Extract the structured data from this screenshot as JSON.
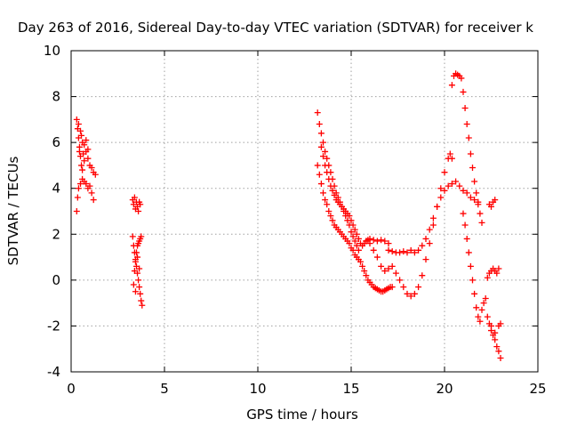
{
  "chart_data": {
    "type": "scatter",
    "title": "Day 263 of 2016, Sidereal Day-to-day VTEC variation (SDTVAR) for receiver k",
    "xlabel": "GPS time / hours",
    "ylabel": "SDTVAR / TECUs",
    "xlim": [
      0,
      25
    ],
    "ylim": [
      -4,
      10
    ],
    "xticks": [
      0,
      5,
      10,
      15,
      20,
      25
    ],
    "yticks": [
      -4,
      -2,
      0,
      2,
      4,
      6,
      8,
      10
    ],
    "grid": true,
    "marker": "+",
    "color": "#ff0000",
    "series": [
      {
        "points": [
          [
            0.3,
            7.0
          ],
          [
            0.35,
            6.6
          ],
          [
            0.4,
            6.2
          ],
          [
            0.45,
            5.8
          ],
          [
            0.5,
            5.4
          ],
          [
            0.55,
            5.0
          ],
          [
            0.6,
            4.8
          ],
          [
            0.7,
            5.2
          ],
          [
            0.8,
            5.6
          ],
          [
            0.9,
            5.3
          ],
          [
            1.0,
            5.0
          ],
          [
            1.1,
            4.9
          ],
          [
            1.2,
            4.7
          ],
          [
            1.3,
            4.6
          ],
          [
            0.3,
            3.0
          ],
          [
            0.35,
            3.6
          ],
          [
            0.4,
            4.0
          ],
          [
            0.5,
            4.2
          ],
          [
            0.6,
            4.4
          ],
          [
            0.7,
            4.3
          ],
          [
            0.8,
            4.2
          ],
          [
            0.9,
            4.0
          ],
          [
            1.0,
            4.1
          ],
          [
            1.1,
            3.8
          ],
          [
            1.2,
            3.5
          ],
          [
            0.4,
            6.8
          ],
          [
            0.5,
            6.5
          ],
          [
            0.6,
            6.0
          ],
          [
            0.7,
            5.9
          ],
          [
            0.8,
            6.1
          ],
          [
            0.55,
            6.3
          ],
          [
            0.9,
            5.7
          ],
          [
            0.65,
            5.5
          ],
          [
            0.45,
            5.6
          ],
          [
            3.3,
            3.5
          ],
          [
            3.35,
            3.3
          ],
          [
            3.4,
            3.6
          ],
          [
            3.45,
            3.1
          ],
          [
            3.5,
            3.4
          ],
          [
            3.55,
            3.2
          ],
          [
            3.6,
            3.0
          ],
          [
            3.65,
            3.4
          ],
          [
            3.7,
            3.3
          ],
          [
            3.3,
            1.9
          ],
          [
            3.35,
            1.5
          ],
          [
            3.4,
            1.2
          ],
          [
            3.45,
            0.9
          ],
          [
            3.5,
            0.6
          ],
          [
            3.55,
            0.3
          ],
          [
            3.6,
            0.0
          ],
          [
            3.65,
            -0.3
          ],
          [
            3.7,
            -0.6
          ],
          [
            3.75,
            -0.9
          ],
          [
            3.8,
            -1.1
          ],
          [
            3.4,
            0.4
          ],
          [
            3.45,
            0.8
          ],
          [
            3.5,
            1.2
          ],
          [
            3.55,
            1.5
          ],
          [
            3.6,
            1.6
          ],
          [
            3.65,
            1.7
          ],
          [
            3.7,
            1.8
          ],
          [
            3.75,
            1.9
          ],
          [
            3.35,
            -0.2
          ],
          [
            3.45,
            -0.5
          ],
          [
            3.55,
            1.0
          ],
          [
            3.65,
            0.5
          ],
          [
            13.2,
            7.3
          ],
          [
            13.3,
            6.8
          ],
          [
            13.4,
            6.4
          ],
          [
            13.5,
            6.0
          ],
          [
            13.6,
            5.6
          ],
          [
            13.7,
            5.3
          ],
          [
            13.8,
            5.0
          ],
          [
            13.9,
            4.7
          ],
          [
            14.0,
            4.4
          ],
          [
            14.1,
            4.1
          ],
          [
            14.2,
            3.8
          ],
          [
            14.3,
            3.6
          ],
          [
            14.4,
            3.4
          ],
          [
            14.5,
            3.2
          ],
          [
            14.6,
            3.0
          ],
          [
            14.7,
            2.8
          ],
          [
            14.8,
            2.6
          ],
          [
            14.9,
            2.4
          ],
          [
            15.0,
            2.1
          ],
          [
            15.1,
            1.9
          ],
          [
            15.2,
            1.7
          ],
          [
            15.3,
            1.5
          ],
          [
            15.4,
            1.3
          ],
          [
            13.2,
            5.0
          ],
          [
            13.3,
            4.6
          ],
          [
            13.4,
            4.2
          ],
          [
            13.5,
            3.8
          ],
          [
            13.6,
            3.5
          ],
          [
            13.7,
            3.3
          ],
          [
            13.8,
            3.0
          ],
          [
            13.9,
            2.8
          ],
          [
            14.0,
            2.6
          ],
          [
            14.1,
            2.4
          ],
          [
            14.2,
            2.3
          ],
          [
            14.3,
            2.2
          ],
          [
            14.4,
            2.1
          ],
          [
            14.5,
            2.0
          ],
          [
            14.6,
            1.9
          ],
          [
            14.7,
            1.8
          ],
          [
            14.8,
            1.7
          ],
          [
            14.9,
            1.6
          ],
          [
            15.0,
            1.4
          ],
          [
            15.1,
            1.3
          ],
          [
            15.2,
            1.1
          ],
          [
            15.3,
            1.0
          ],
          [
            15.4,
            0.9
          ],
          [
            15.5,
            0.8
          ],
          [
            15.6,
            0.6
          ],
          [
            15.7,
            0.4
          ],
          [
            15.8,
            0.2
          ],
          [
            15.9,
            0.0
          ],
          [
            16.0,
            -0.1
          ],
          [
            16.1,
            -0.2
          ],
          [
            16.2,
            -0.3
          ],
          [
            16.3,
            -0.35
          ],
          [
            16.4,
            -0.4
          ],
          [
            16.5,
            -0.45
          ],
          [
            16.6,
            -0.5
          ],
          [
            16.7,
            -0.5
          ],
          [
            16.8,
            -0.45
          ],
          [
            16.9,
            -0.4
          ],
          [
            17.0,
            -0.35
          ],
          [
            17.1,
            -0.3
          ],
          [
            17.2,
            -0.3
          ],
          [
            13.4,
            5.8
          ],
          [
            13.5,
            5.4
          ],
          [
            13.6,
            5.0
          ],
          [
            13.7,
            4.7
          ],
          [
            13.8,
            4.4
          ],
          [
            13.9,
            4.1
          ],
          [
            14.0,
            3.9
          ],
          [
            14.1,
            3.7
          ],
          [
            14.2,
            3.5
          ],
          [
            14.3,
            3.4
          ],
          [
            14.4,
            3.3
          ],
          [
            14.5,
            3.2
          ],
          [
            14.6,
            3.1
          ],
          [
            14.7,
            3.0
          ],
          [
            14.8,
            2.9
          ],
          [
            14.9,
            2.8
          ],
          [
            15.0,
            2.6
          ],
          [
            15.1,
            2.4
          ],
          [
            15.2,
            2.2
          ],
          [
            15.3,
            2.0
          ],
          [
            15.4,
            1.8
          ],
          [
            15.5,
            1.6
          ],
          [
            15.6,
            1.5
          ],
          [
            15.7,
            1.6
          ],
          [
            15.8,
            1.7
          ],
          [
            15.9,
            1.75
          ],
          [
            16.0,
            1.8
          ],
          [
            16.2,
            1.75
          ],
          [
            16.4,
            1.7
          ],
          [
            16.6,
            1.75
          ],
          [
            16.8,
            1.7
          ],
          [
            17.0,
            1.6
          ],
          [
            15.8,
            1.7
          ],
          [
            16.0,
            1.6
          ],
          [
            16.2,
            1.3
          ],
          [
            16.4,
            1.0
          ],
          [
            16.6,
            0.6
          ],
          [
            16.8,
            0.4
          ],
          [
            17.0,
            0.5
          ],
          [
            17.2,
            0.6
          ],
          [
            17.4,
            0.3
          ],
          [
            17.6,
            0.0
          ],
          [
            17.8,
            -0.3
          ],
          [
            18.0,
            -0.6
          ],
          [
            18.2,
            -0.7
          ],
          [
            18.4,
            -0.6
          ],
          [
            18.6,
            -0.3
          ],
          [
            18.8,
            0.2
          ],
          [
            19.0,
            0.9
          ],
          [
            19.2,
            1.6
          ],
          [
            19.4,
            2.4
          ],
          [
            19.6,
            3.2
          ],
          [
            19.8,
            4.0
          ],
          [
            20.0,
            4.7
          ],
          [
            20.2,
            5.3
          ],
          [
            20.3,
            5.5
          ],
          [
            20.4,
            5.3
          ],
          [
            17.0,
            1.3
          ],
          [
            17.2,
            1.25
          ],
          [
            17.4,
            1.2
          ],
          [
            17.6,
            1.2
          ],
          [
            17.8,
            1.25
          ],
          [
            18.0,
            1.2
          ],
          [
            18.2,
            1.3
          ],
          [
            18.4,
            1.2
          ],
          [
            18.6,
            1.3
          ],
          [
            18.8,
            1.5
          ],
          [
            19.0,
            1.8
          ],
          [
            19.2,
            2.2
          ],
          [
            19.4,
            2.7
          ],
          [
            19.6,
            3.2
          ],
          [
            19.8,
            3.6
          ],
          [
            20.0,
            3.9
          ],
          [
            20.2,
            4.1
          ],
          [
            20.4,
            4.2
          ],
          [
            20.6,
            4.3
          ],
          [
            20.8,
            4.1
          ],
          [
            21.0,
            3.9
          ],
          [
            21.2,
            3.8
          ],
          [
            21.4,
            3.6
          ],
          [
            21.6,
            3.5
          ],
          [
            21.8,
            3.4
          ],
          [
            20.4,
            8.5
          ],
          [
            20.5,
            8.9
          ],
          [
            20.6,
            9.0
          ],
          [
            20.7,
            8.95
          ],
          [
            20.8,
            8.9
          ],
          [
            20.9,
            8.8
          ],
          [
            21.0,
            8.2
          ],
          [
            21.1,
            7.5
          ],
          [
            21.2,
            6.8
          ],
          [
            21.3,
            6.2
          ],
          [
            21.4,
            5.5
          ],
          [
            21.5,
            4.9
          ],
          [
            21.6,
            4.3
          ],
          [
            21.7,
            3.8
          ],
          [
            21.8,
            3.3
          ],
          [
            21.9,
            2.9
          ],
          [
            22.0,
            2.5
          ],
          [
            21.0,
            2.9
          ],
          [
            21.1,
            2.4
          ],
          [
            21.2,
            1.8
          ],
          [
            21.3,
            1.2
          ],
          [
            21.4,
            0.6
          ],
          [
            21.5,
            0.0
          ],
          [
            21.6,
            -0.6
          ],
          [
            21.7,
            -1.2
          ],
          [
            21.8,
            -1.6
          ],
          [
            21.9,
            -1.8
          ],
          [
            22.0,
            -1.3
          ],
          [
            22.1,
            -1.0
          ],
          [
            22.3,
            -1.6
          ],
          [
            22.4,
            -1.9
          ],
          [
            22.5,
            -2.2
          ],
          [
            22.6,
            -2.4
          ],
          [
            22.7,
            -2.6
          ],
          [
            22.8,
            -2.9
          ],
          [
            22.9,
            -3.1
          ],
          [
            23.0,
            -3.4
          ],
          [
            22.2,
            -0.8
          ],
          [
            22.3,
            0.1
          ],
          [
            22.4,
            0.3
          ],
          [
            22.5,
            0.4
          ],
          [
            22.6,
            0.5
          ],
          [
            22.7,
            0.4
          ],
          [
            22.8,
            0.3
          ],
          [
            22.9,
            0.5
          ],
          [
            22.4,
            3.3
          ],
          [
            22.5,
            3.2
          ],
          [
            22.6,
            3.4
          ],
          [
            22.7,
            3.5
          ],
          [
            22.5,
            -2.0
          ],
          [
            22.7,
            -2.3
          ],
          [
            22.9,
            -2.0
          ],
          [
            23.0,
            -1.9
          ]
        ]
      }
    ]
  }
}
